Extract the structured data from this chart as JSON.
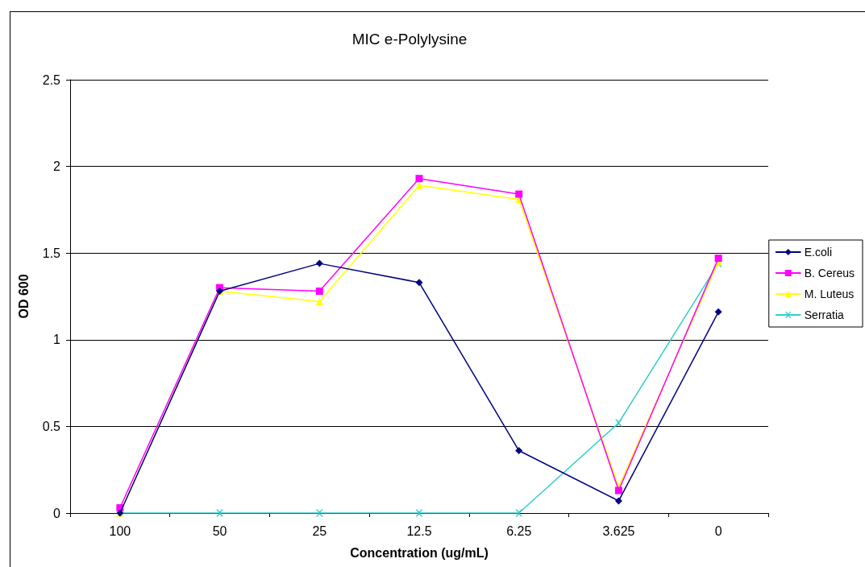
{
  "chart_data": {
    "type": "line",
    "title": "MIC e-Polylysine",
    "xlabel": "Concentration (ug/mL)",
    "ylabel": "OD 600",
    "categories": [
      "100",
      "50",
      "25",
      "12.5",
      "6.25",
      "3.625",
      "0"
    ],
    "series": [
      {
        "name": "E.coli",
        "color": "#000080",
        "marker": "diamond",
        "values": [
          0,
          1.28,
          1.44,
          1.33,
          0.36,
          0.07,
          1.16
        ]
      },
      {
        "name": "B. Cereus",
        "color": "#ff00ff",
        "marker": "square",
        "values": [
          0.03,
          1.3,
          1.28,
          1.93,
          1.84,
          0.13,
          1.47
        ]
      },
      {
        "name": "M. Luteus",
        "color": "#ffff00",
        "marker": "triangle",
        "values": [
          0,
          1.28,
          1.22,
          1.89,
          1.81,
          0.15,
          1.45
        ]
      },
      {
        "name": "Serratia",
        "color": "#33cccc",
        "marker": "cross",
        "values": [
          0,
          0,
          0,
          0,
          0,
          0.52,
          1.44
        ]
      }
    ],
    "ylim": [
      0,
      2.5
    ],
    "yticks": [
      0,
      0.5,
      1,
      1.5,
      2,
      2.5
    ],
    "grid": "y",
    "legend": "right",
    "line_style": "solid"
  }
}
